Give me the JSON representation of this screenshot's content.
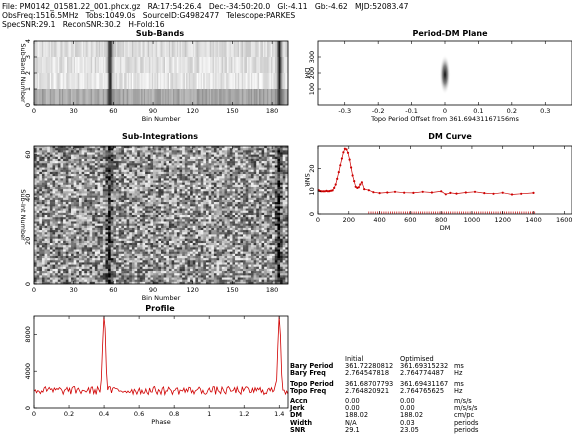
{
  "header": {
    "line1": "File: PM0142_01581.22_001.phcx.gz   RA:17:54:26.4   Dec:-34:50:20.0   Gl:-4.11   Gb:-4.62   MJD:52083.47",
    "line2": "ObsFreq:1516.5MHz   Tobs:1049.0s   SourceID:G4982477   Telescope:PARKES",
    "line3": "SpecSNR:29.1   ReconSNR:30.2   H-Fold:16"
  },
  "titles": {
    "subbands": "Sub-Bands",
    "subints": "Sub-Integrations",
    "profile": "Profile",
    "pdm": "Period-DM Plane",
    "dmcurve": "DM Curve"
  },
  "chart_data": [
    {
      "type": "heatmap",
      "title": "Sub-Bands",
      "xlabel": "Bin Number",
      "ylabel": "Sub-Band Number",
      "xlim": [
        0,
        192
      ],
      "ylim": [
        0,
        4
      ],
      "xticks": [
        "0",
        "30",
        "60",
        "90",
        "120",
        "150",
        "180"
      ],
      "yticks": [
        "0",
        "1",
        "2",
        "3",
        "4"
      ],
      "pulse_bins": [
        57,
        185
      ]
    },
    {
      "type": "heatmap",
      "title": "Sub-Integrations",
      "xlabel": "Bin Number",
      "ylabel": "Sub-Int Number",
      "xlim": [
        0,
        192
      ],
      "ylim": [
        0,
        64
      ],
      "xticks": [
        "0",
        "30",
        "60",
        "90",
        "120",
        "150",
        "180"
      ],
      "yticks": [
        "0",
        "20",
        "40",
        "60"
      ],
      "pulse_bins": [
        57,
        185
      ]
    },
    {
      "type": "line",
      "title": "Profile",
      "xlabel": "Phase",
      "ylabel": "",
      "xlim": [
        0,
        1.45
      ],
      "ylim": [
        0,
        10000
      ],
      "xticks": [
        "0",
        "0.2",
        "0.4",
        "0.6",
        "0.8",
        "1",
        "1.2",
        "1.4"
      ],
      "yticks": [
        "0",
        "4000",
        "8000"
      ],
      "color": "#d00000",
      "baseline": 1900,
      "noise": 450,
      "peaks": [
        {
          "phase": 0.4,
          "height": 10400
        },
        {
          "phase": 1.4,
          "height": 10400
        }
      ]
    },
    {
      "type": "heatmap",
      "title": "Period-DM Plane",
      "xlabel": "Topo Period Offset from 361.69431167156ms",
      "ylabel": "DM",
      "xlim": [
        -0.38,
        0.38
      ],
      "ylim": [
        0,
        400
      ],
      "xticks": [
        "-0.3",
        "-0.2",
        "-0.1",
        "0",
        "0.1",
        "0.2",
        "0.3"
      ],
      "yticks": [
        "100",
        "200",
        "300"
      ],
      "peak": {
        "x": 0,
        "y": 190
      }
    },
    {
      "type": "scatter",
      "title": "DM Curve",
      "xlabel": "DM",
      "ylabel": "SNR",
      "xlim": [
        0,
        1650
      ],
      "ylim": [
        0,
        30
      ],
      "xticks": [
        "0",
        "200",
        "400",
        "600",
        "800",
        "1000",
        "1200",
        "1400",
        "1600"
      ],
      "yticks": [
        "0",
        "10",
        "20"
      ],
      "color": "#cc0000",
      "x": [
        5,
        15,
        25,
        35,
        45,
        55,
        65,
        75,
        85,
        95,
        105,
        115,
        125,
        135,
        145,
        155,
        165,
        175,
        185,
        195,
        205,
        215,
        225,
        235,
        245,
        255,
        265,
        275,
        285,
        300,
        330,
        360,
        400,
        450,
        500,
        560,
        620,
        680,
        740,
        800,
        830,
        860,
        900,
        960,
        1020,
        1080,
        1140,
        1200,
        1260,
        1320,
        1400
      ],
      "values": [
        10.5,
        10.1,
        10.0,
        10.0,
        10.0,
        10.2,
        10.0,
        10.1,
        10.3,
        10.4,
        11.5,
        13.0,
        15.5,
        18.5,
        21.5,
        24.5,
        27.2,
        28.8,
        28.5,
        27.0,
        24.0,
        20.5,
        17.0,
        14.5,
        12.0,
        11.5,
        11.8,
        13.0,
        14.0,
        11.0,
        10.5,
        9.6,
        9.2,
        9.5,
        9.8,
        9.4,
        9.3,
        9.8,
        9.5,
        10.0,
        8.7,
        9.3,
        9.0,
        9.5,
        9.8,
        9.2,
        8.9,
        9.4,
        8.6,
        8.9,
        9.3
      ]
    }
  ],
  "table": {
    "headers": [
      "",
      "Initial",
      "Optimised",
      ""
    ],
    "rows": [
      [
        "Bary Period",
        "361.72280812",
        "361.69315232",
        "ms"
      ],
      [
        "Bary Freq",
        "2.764547818",
        "2.764774487",
        "Hz"
      ],
      [
        "",
        "",
        "",
        ""
      ],
      [
        "Topo Period",
        "361.68707793",
        "361.69431167",
        "ms"
      ],
      [
        "Topo Freq",
        "2.764820921",
        "2.764765625",
        "Hz"
      ],
      [
        "",
        "",
        "",
        ""
      ],
      [
        "Accn",
        "0.00",
        "0.00",
        "m/s/s"
      ],
      [
        "Jerk",
        "0.00",
        "0.00",
        "m/s/s/s"
      ],
      [
        "DM",
        "188.02",
        "188.02",
        "cm/pc"
      ],
      [
        "Width",
        "N/A",
        "0.03",
        "periods"
      ],
      [
        "SNR",
        "29.1",
        "23.05",
        "periods"
      ]
    ]
  }
}
